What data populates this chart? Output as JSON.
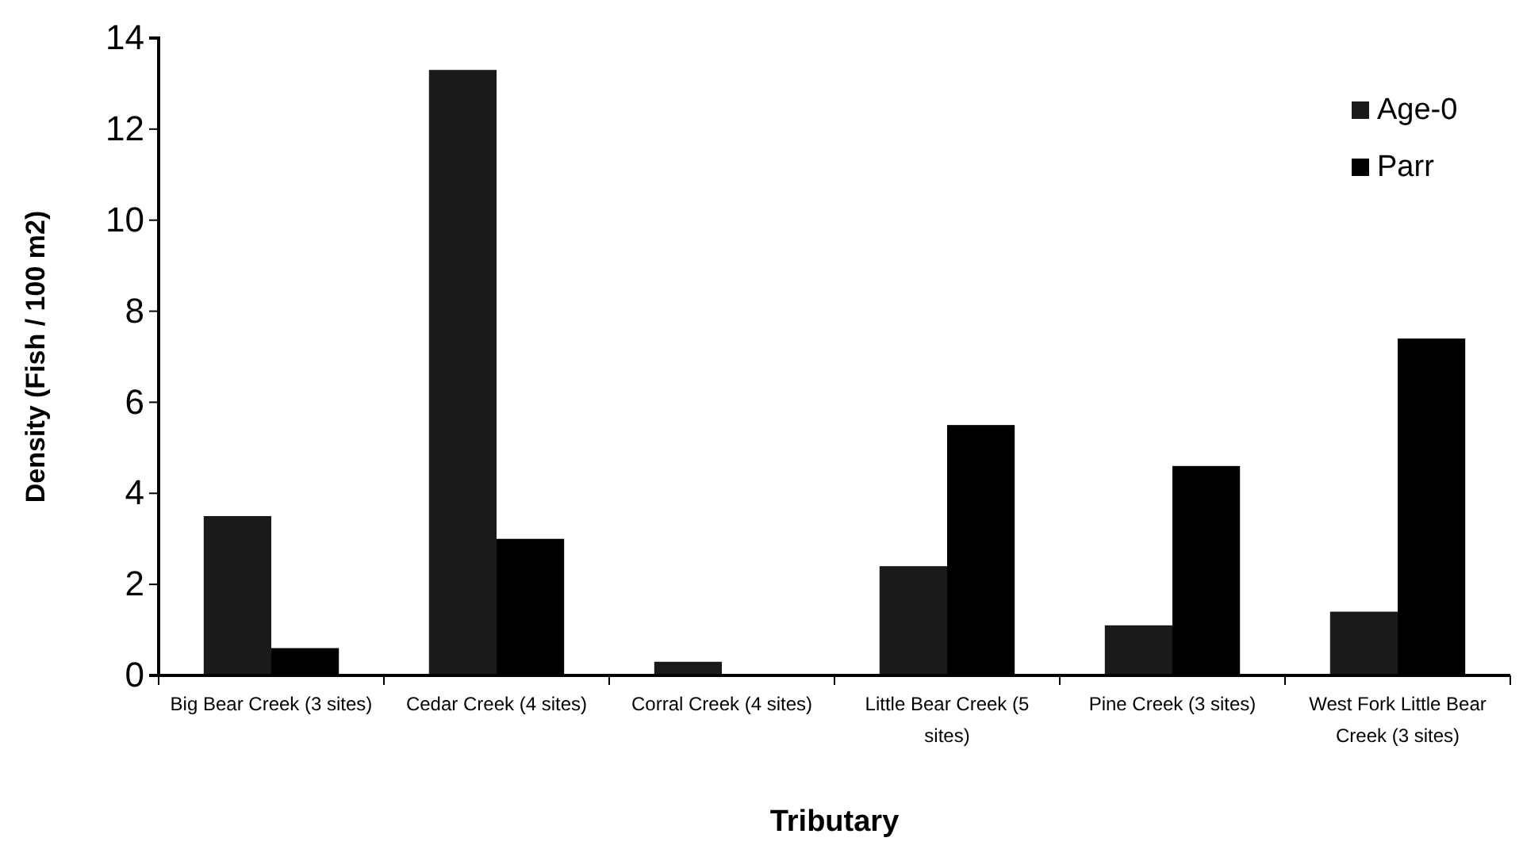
{
  "chart_data": {
    "type": "bar",
    "xlabel": "Tributary",
    "ylabel": "Density (Fish / 100 m2)",
    "categories": [
      "Big Bear Creek (3 sites)",
      "Cedar Creek (4 sites)",
      "Corral Creek (4 sites)",
      "Little Bear Creek (5 sites)",
      "Pine Creek (3 sites)",
      "West Fork Little Bear Creek (3 sites)"
    ],
    "series": [
      {
        "name": "Age-0",
        "color": "#1a1a1a",
        "values": [
          3.5,
          13.3,
          0.3,
          2.4,
          1.1,
          1.4
        ]
      },
      {
        "name": "Parr",
        "color": "#000000",
        "values": [
          0.6,
          3.0,
          0,
          5.5,
          4.6,
          7.4
        ]
      }
    ],
    "ylim": [
      0,
      14
    ],
    "yticks": [
      0,
      2,
      4,
      6,
      8,
      10,
      12,
      14
    ],
    "grid": false,
    "legend": "top right"
  }
}
